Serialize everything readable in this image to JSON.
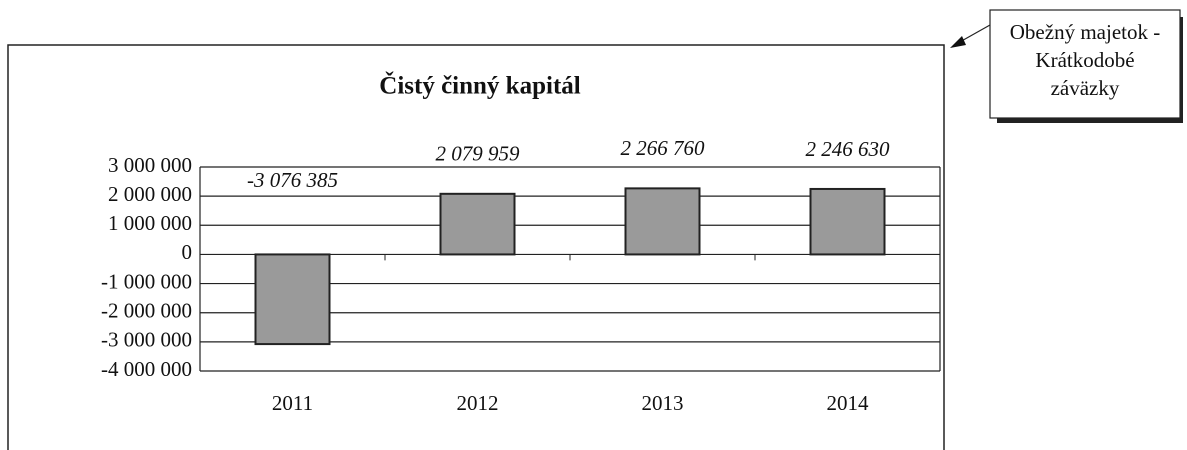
{
  "chart_data": {
    "type": "bar",
    "title": "Čistý činný kapitál",
    "categories": [
      "2011",
      "2012",
      "2013",
      "2014"
    ],
    "values": [
      -3076385,
      2079959,
      2266760,
      2246630
    ],
    "value_labels": [
      "-3 076 385",
      "2 079 959",
      "2 266 760",
      "2 246 630"
    ],
    "color": "#9a9a9a",
    "ylim": [
      -4000000,
      3000000
    ],
    "yticks": [
      {
        "value": -4000000,
        "label": "-4 000 000"
      },
      {
        "value": -3000000,
        "label": "-3 000 000"
      },
      {
        "value": -2000000,
        "label": "-2 000 000"
      },
      {
        "value": -1000000,
        "label": "-1 000 000"
      },
      {
        "value": 0,
        "label": "0"
      },
      {
        "value": 1000000,
        "label": "1 000 000"
      },
      {
        "value": 2000000,
        "label": "2 000 000"
      },
      {
        "value": 3000000,
        "label": "3 000 000"
      }
    ],
    "grid": true,
    "annotation": [
      "Obežný majetok -",
      "Krátkodobé",
      "záväzky"
    ]
  }
}
